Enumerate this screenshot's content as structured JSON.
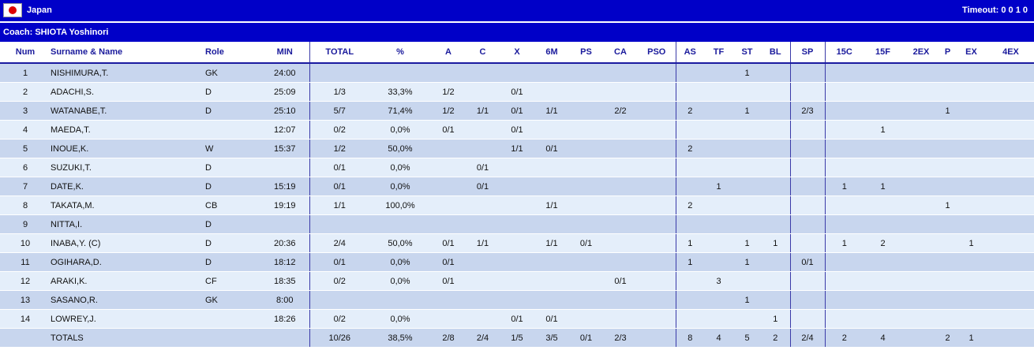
{
  "header": {
    "team": "Japan",
    "timeout_label": "Timeout:",
    "timeout_values": "0 0 1 0",
    "coach": "Coach: SHIOTA Yoshinori"
  },
  "columns": [
    "Num",
    "Surname & Name",
    "Role",
    "MIN",
    "TOTAL",
    "%",
    "A",
    "C",
    "X",
    "6M",
    "PS",
    "CA",
    "PSO",
    "AS",
    "TF",
    "ST",
    "BL",
    "SP",
    "15C",
    "15F",
    "2EX",
    "P",
    "EX",
    "4EX"
  ],
  "rows": [
    [
      "1",
      "NISHIMURA,T.",
      "GK",
      "24:00",
      "",
      "",
      "",
      "",
      "",
      "",
      "",
      "",
      "",
      "",
      "",
      "1",
      "",
      "",
      "",
      "",
      "",
      "",
      "",
      ""
    ],
    [
      "2",
      "ADACHI,S.",
      "D",
      "25:09",
      "1/3",
      "33,3%",
      "1/2",
      "",
      "0/1",
      "",
      "",
      "",
      "",
      "",
      "",
      "",
      "",
      "",
      "",
      "",
      "",
      "",
      "",
      ""
    ],
    [
      "3",
      "WATANABE,T.",
      "D",
      "25:10",
      "5/7",
      "71,4%",
      "1/2",
      "1/1",
      "0/1",
      "1/1",
      "",
      "2/2",
      "",
      "2",
      "",
      "1",
      "",
      "2/3",
      "",
      "",
      "",
      "1",
      "",
      ""
    ],
    [
      "4",
      "MAEDA,T.",
      "",
      "12:07",
      "0/2",
      "0,0%",
      "0/1",
      "",
      "0/1",
      "",
      "",
      "",
      "",
      "",
      "",
      "",
      "",
      "",
      "",
      "1",
      "",
      "",
      "",
      ""
    ],
    [
      "5",
      "INOUE,K.",
      "W",
      "15:37",
      "1/2",
      "50,0%",
      "",
      "",
      "1/1",
      "0/1",
      "",
      "",
      "",
      "2",
      "",
      "",
      "",
      "",
      "",
      "",
      "",
      "",
      "",
      ""
    ],
    [
      "6",
      "SUZUKI,T.",
      "D",
      "",
      "0/1",
      "0,0%",
      "",
      "0/1",
      "",
      "",
      "",
      "",
      "",
      "",
      "",
      "",
      "",
      "",
      "",
      "",
      "",
      "",
      "",
      ""
    ],
    [
      "7",
      "DATE,K.",
      "D",
      "15:19",
      "0/1",
      "0,0%",
      "",
      "0/1",
      "",
      "",
      "",
      "",
      "",
      "",
      "1",
      "",
      "",
      "",
      "1",
      "1",
      "",
      "",
      "",
      ""
    ],
    [
      "8",
      "TAKATA,M.",
      "CB",
      "19:19",
      "1/1",
      "100,0%",
      "",
      "",
      "",
      "1/1",
      "",
      "",
      "",
      "2",
      "",
      "",
      "",
      "",
      "",
      "",
      "",
      "1",
      "",
      ""
    ],
    [
      "9",
      "NITTA,I.",
      "D",
      "",
      "",
      "",
      "",
      "",
      "",
      "",
      "",
      "",
      "",
      "",
      "",
      "",
      "",
      "",
      "",
      "",
      "",
      "",
      "",
      ""
    ],
    [
      "10",
      "INABA,Y.  (C)",
      "D",
      "20:36",
      "2/4",
      "50,0%",
      "0/1",
      "1/1",
      "",
      "1/1",
      "0/1",
      "",
      "",
      "1",
      "",
      "1",
      "1",
      "",
      "1",
      "2",
      "",
      "",
      "1",
      ""
    ],
    [
      "11",
      "OGIHARA,D.",
      "D",
      "18:12",
      "0/1",
      "0,0%",
      "0/1",
      "",
      "",
      "",
      "",
      "",
      "",
      "1",
      "",
      "1",
      "",
      "0/1",
      "",
      "",
      "",
      "",
      "",
      ""
    ],
    [
      "12",
      "ARAKI,K.",
      "CF",
      "18:35",
      "0/2",
      "0,0%",
      "0/1",
      "",
      "",
      "",
      "",
      "0/1",
      "",
      "",
      "3",
      "",
      "",
      "",
      "",
      "",
      "",
      "",
      "",
      ""
    ],
    [
      "13",
      "SASANO,R.",
      "GK",
      "8:00",
      "",
      "",
      "",
      "",
      "",
      "",
      "",
      "",
      "",
      "",
      "",
      "1",
      "",
      "",
      "",
      "",
      "",
      "",
      "",
      ""
    ],
    [
      "14",
      "LOWREY,J.",
      "",
      "18:26",
      "0/2",
      "0,0%",
      "",
      "",
      "0/1",
      "0/1",
      "",
      "",
      "",
      "",
      "",
      "",
      "1",
      "",
      "",
      "",
      "",
      "",
      "",
      ""
    ]
  ],
  "totals": [
    "",
    "TOTALS",
    "",
    "",
    "10/26",
    "38,5%",
    "2/8",
    "2/4",
    "1/5",
    "3/5",
    "0/1",
    "2/3",
    "",
    "8",
    "4",
    "5",
    "2",
    "2/4",
    "2",
    "4",
    "",
    "2",
    "1",
    ""
  ]
}
